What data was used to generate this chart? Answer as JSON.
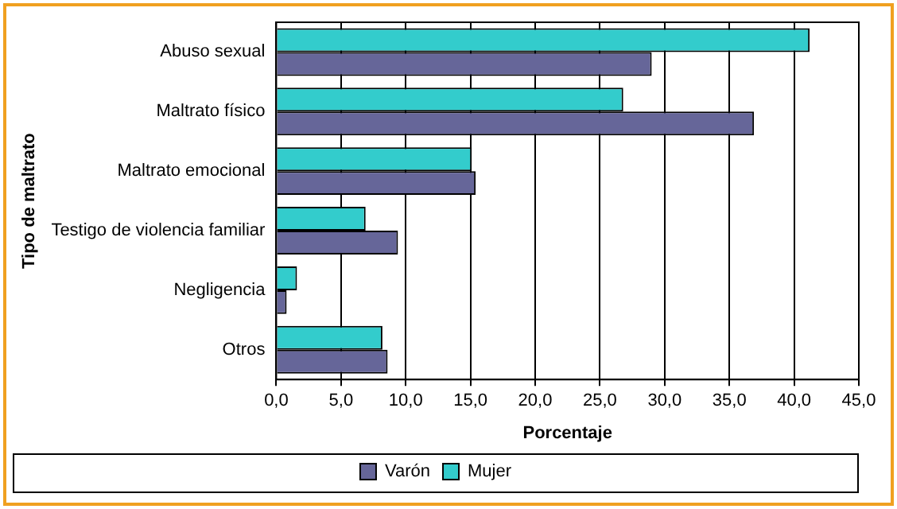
{
  "chart_data": {
    "type": "bar",
    "orientation": "horizontal",
    "xlabel": "Porcentaje",
    "ylabel": "Tipo de maltrato",
    "categories": [
      "Abuso sexual",
      "Maltrato físico",
      "Maltrato emocional",
      "Testigo de violencia familiar",
      "Negligencia",
      "Otros"
    ],
    "series": [
      {
        "name": "Varón",
        "color": "#666699",
        "values": [
          29.0,
          36.9,
          15.4,
          9.4,
          0.8,
          8.6
        ]
      },
      {
        "name": "Mujer",
        "color": "#33cccc",
        "values": [
          41.2,
          26.8,
          15.1,
          6.9,
          1.6,
          8.2
        ]
      }
    ],
    "xlim": [
      0,
      45
    ],
    "xticks": [
      {
        "value": 0,
        "label": "0,0"
      },
      {
        "value": 5,
        "label": "5,0"
      },
      {
        "value": 10,
        "label": "10,0"
      },
      {
        "value": 15,
        "label": "15,0"
      },
      {
        "value": 20,
        "label": "20,0"
      },
      {
        "value": 25,
        "label": "25,0"
      },
      {
        "value": 30,
        "label": "30,0"
      },
      {
        "value": 35,
        "label": "35,0"
      },
      {
        "value": 40,
        "label": "40,0"
      },
      {
        "value": 45,
        "label": "45,0"
      }
    ],
    "grid": "x",
    "legend": "bottom"
  }
}
